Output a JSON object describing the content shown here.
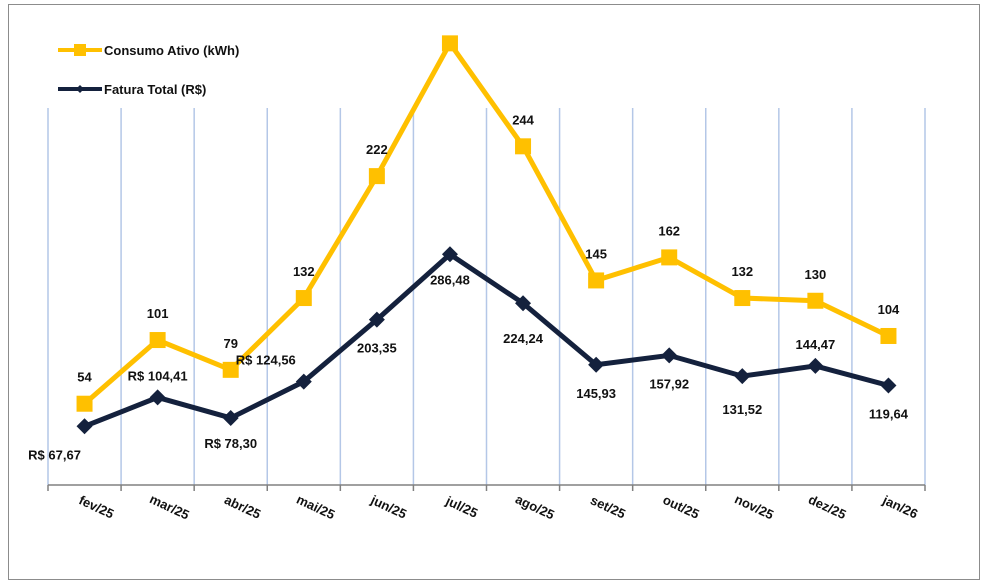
{
  "chart_data": {
    "type": "line",
    "title": "",
    "xlabel": "",
    "ylabel": "",
    "grid": "vertical",
    "legend_position": "top-left",
    "categories": [
      "fev/25",
      "mar/25",
      "abr/25",
      "mai/25",
      "jun/25",
      "jul/25",
      "ago/25",
      "set/25",
      "out/25",
      "nov/25",
      "dez/25",
      "jan/26"
    ],
    "series": [
      {
        "name": "Consumo Ativo (kWh)",
        "color": "#FFC000",
        "marker": "square",
        "values": [
          54,
          101,
          79,
          132,
          222,
          320,
          244,
          145,
          162,
          132,
          130,
          104
        ],
        "labels": [
          "54",
          "101",
          "79",
          "132",
          "222",
          "",
          "244",
          "145",
          "162",
          "132",
          "130",
          "104"
        ],
        "ylim": [
          -6,
          352
        ]
      },
      {
        "name": "Fatura Total (R$)",
        "color": "#14213D",
        "marker": "diamond",
        "values": [
          67.67,
          104.41,
          78.3,
          124.56,
          203.35,
          286.48,
          224.24,
          145.93,
          157.92,
          131.52,
          144.47,
          119.64
        ],
        "labels": [
          "R$ 67,67",
          "R$ 104,41",
          "R$ 78,30",
          "R$ 124,56",
          "203,35",
          "286,48",
          "224,24",
          "145,93",
          "157,92",
          "131,52",
          "144,47",
          "119,64"
        ],
        "ylim": [
          -7,
          610
        ]
      }
    ]
  }
}
